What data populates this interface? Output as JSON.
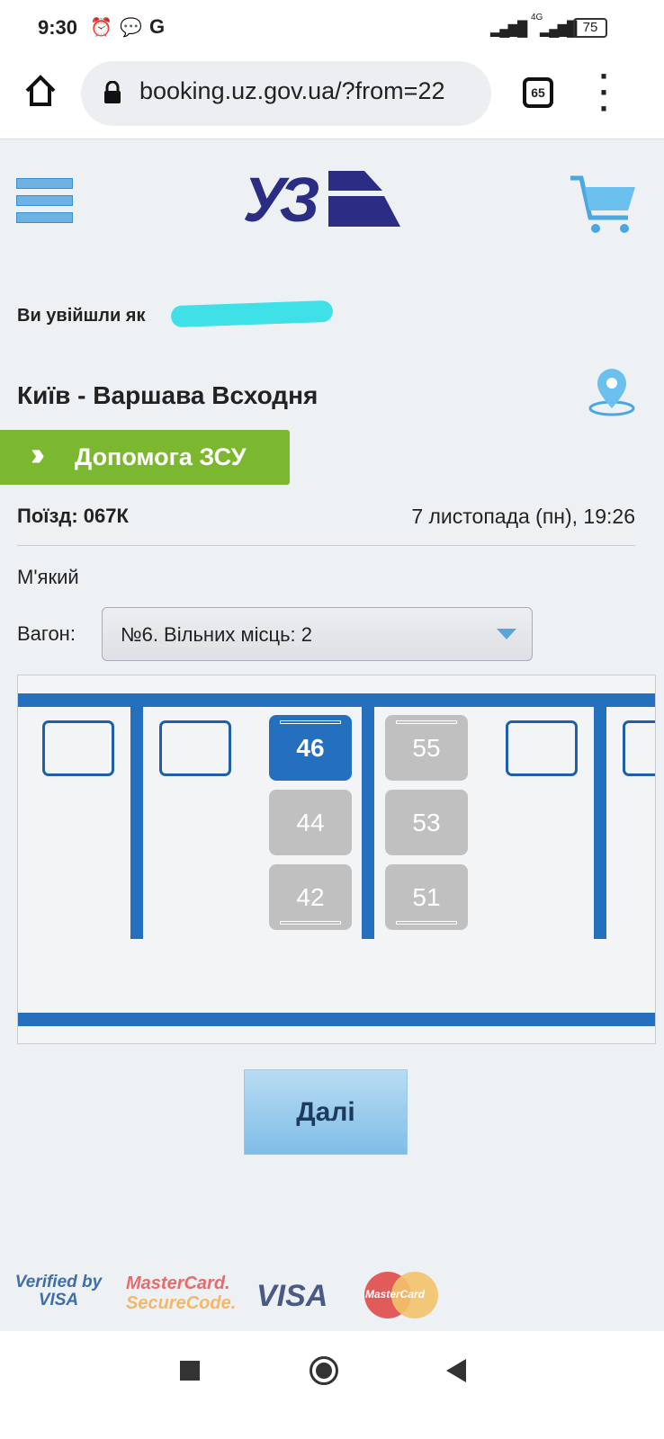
{
  "status_bar": {
    "time": "9:30",
    "network": "4G",
    "battery": "75"
  },
  "browser": {
    "url": "booking.uz.gov.ua/?from=22",
    "tab_count": "65"
  },
  "header": {
    "logo": "УЗ"
  },
  "user": {
    "logged_in_text": "Ви увійшли як"
  },
  "route": {
    "title": "Київ - Варшава Всходня"
  },
  "help_banner": {
    "label": "Допомога ЗСУ",
    "color": "#7cb82f"
  },
  "train": {
    "label": "Поїзд: 067К",
    "datetime": "7 листопада (пн), 19:26"
  },
  "car_type": "М'який",
  "wagon": {
    "label": "Вагон:",
    "selected": "№6. Вільних місць: 2"
  },
  "seats": [
    {
      "number": "46",
      "state": "selected"
    },
    {
      "number": "44",
      "state": "occupied"
    },
    {
      "number": "42",
      "state": "occupied"
    },
    {
      "number": "55",
      "state": "occupied"
    },
    {
      "number": "53",
      "state": "occupied"
    },
    {
      "number": "51",
      "state": "occupied"
    }
  ],
  "next_button": "Далі",
  "payment_logos": [
    "Verified by VISA",
    "MasterCard SecureCode",
    "VISA",
    "MasterCard"
  ],
  "colors": {
    "accent": "#2470bf",
    "brand": "#2b2d84"
  }
}
